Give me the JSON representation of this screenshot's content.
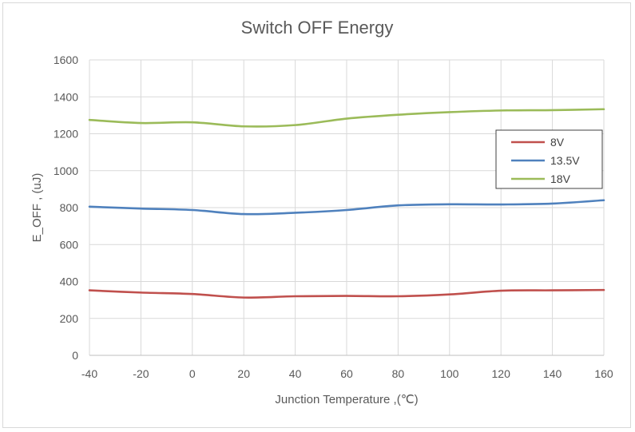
{
  "chart_data": {
    "type": "line",
    "title": "Switch OFF Energy",
    "xlabel": "Junction Temperature ,(℃)",
    "ylabel": "E_OFF , (uJ)",
    "xlim": [
      -40,
      160
    ],
    "ylim": [
      0,
      1600
    ],
    "x_ticks": [
      -40,
      -20,
      0,
      20,
      40,
      60,
      80,
      100,
      120,
      140,
      160
    ],
    "y_ticks": [
      0,
      200,
      400,
      600,
      800,
      1000,
      1200,
      1400,
      1600
    ],
    "grid": true,
    "legend_position": "right",
    "series": [
      {
        "name": "8V",
        "color": "#c0504d",
        "x": [
          -40,
          -20,
          0,
          20,
          40,
          60,
          80,
          100,
          120,
          140,
          160
        ],
        "y": [
          352,
          340,
          332,
          313,
          320,
          322,
          320,
          330,
          350,
          352,
          354
        ]
      },
      {
        "name": "13.5V",
        "color": "#4f81bd",
        "x": [
          -40,
          -20,
          0,
          20,
          40,
          60,
          80,
          100,
          120,
          140,
          160
        ],
        "y": [
          805,
          795,
          787,
          765,
          772,
          787,
          812,
          818,
          817,
          822,
          840
        ]
      },
      {
        "name": "18V",
        "color": "#9bbb59",
        "x": [
          -40,
          -20,
          0,
          20,
          40,
          60,
          80,
          100,
          120,
          140,
          160
        ],
        "y": [
          1275,
          1258,
          1262,
          1240,
          1247,
          1282,
          1303,
          1317,
          1326,
          1328,
          1333
        ]
      }
    ]
  }
}
